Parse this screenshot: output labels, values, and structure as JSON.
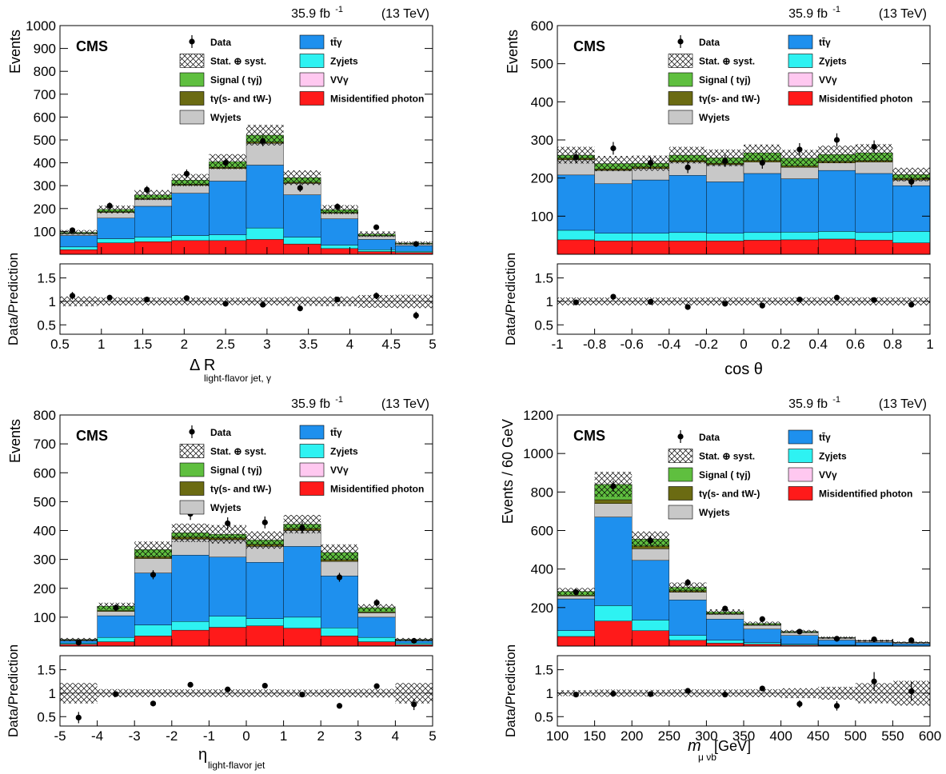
{
  "lumi_label": "35.9 fb",
  "lumi_exp": "-1",
  "energy_label": "(13 TeV)",
  "cms_label": "CMS",
  "ratio_ylabel": "Data/Prediction",
  "ratio_ticks": [
    "0.5",
    "1",
    "1.5"
  ],
  "legend": {
    "data": "Data",
    "unc": "Stat. ⊕ syst.",
    "signal": "Signal ( tγj)",
    "tgamma": "tγ(s- and tW-)",
    "wgamma": "Wγjets",
    "ttgamma": "tt̄γ",
    "zgamma": "Zγjets",
    "vvgamma": "VVγ",
    "misid": "Misidentified photon"
  },
  "colors": {
    "signal": "#5fbf3f",
    "tgamma": "#6b6b12",
    "wgamma": "#c8c8c8",
    "ttgamma": "#1e90ee",
    "zgamma": "#2ef2f2",
    "vvgamma": "#ffc8f0",
    "misid": "#ff1a1a",
    "data": "#000000"
  },
  "chart_data": [
    {
      "type": "bar",
      "stacked": true,
      "ylabel": "Events",
      "xlabel": "Δ R",
      "xlabel_sub": "light-flavor jet, γ",
      "xlim": [
        0.5,
        5
      ],
      "ylim": [
        0,
        1000
      ],
      "xticks": [
        "0.5",
        "1",
        "1.5",
        "2",
        "2.5",
        "3",
        "3.5",
        "4",
        "4.5",
        "5"
      ],
      "yticks": [
        "100",
        "200",
        "300",
        "400",
        "500",
        "600",
        "700",
        "800",
        "900",
        "1000"
      ],
      "bin_edges": [
        0.5,
        0.95,
        1.4,
        1.85,
        2.3,
        2.75,
        3.2,
        3.65,
        4.1,
        4.55,
        5.0
      ],
      "series": [
        {
          "key": "misid",
          "values": [
            20,
            50,
            55,
            60,
            60,
            65,
            45,
            25,
            12,
            8
          ]
        },
        {
          "key": "zgamma",
          "values": [
            12,
            18,
            20,
            22,
            25,
            50,
            30,
            15,
            8,
            5
          ]
        },
        {
          "key": "ttgamma",
          "values": [
            50,
            90,
            135,
            185,
            235,
            275,
            185,
            115,
            45,
            25
          ]
        },
        {
          "key": "wgamma",
          "values": [
            8,
            25,
            30,
            35,
            55,
            95,
            50,
            25,
            15,
            7
          ]
        },
        {
          "key": "tgamma",
          "values": [
            2,
            3,
            4,
            4,
            5,
            6,
            5,
            3,
            2,
            1
          ]
        },
        {
          "key": "signal",
          "values": [
            4,
            10,
            15,
            18,
            25,
            30,
            20,
            12,
            6,
            3
          ]
        }
      ],
      "unc": [
        10,
        17,
        22,
        27,
        33,
        45,
        32,
        20,
        12,
        7
      ],
      "data": [
        {
          "x": 0.65,
          "y": 105
        },
        {
          "x": 1.1,
          "y": 212
        },
        {
          "x": 1.55,
          "y": 282
        },
        {
          "x": 2.03,
          "y": 352
        },
        {
          "x": 2.5,
          "y": 400
        },
        {
          "x": 2.95,
          "y": 495
        },
        {
          "x": 3.4,
          "y": 290
        },
        {
          "x": 3.85,
          "y": 208
        },
        {
          "x": 4.32,
          "y": 118
        },
        {
          "x": 4.8,
          "y": 45
        }
      ],
      "ratio": [
        {
          "x": 0.65,
          "y": 1.12,
          "e": 0.08
        },
        {
          "x": 1.1,
          "y": 1.08,
          "e": 0.05
        },
        {
          "x": 1.55,
          "y": 1.04,
          "e": 0.04
        },
        {
          "x": 2.03,
          "y": 1.07,
          "e": 0.04
        },
        {
          "x": 2.5,
          "y": 0.95,
          "e": 0.03
        },
        {
          "x": 2.95,
          "y": 0.93,
          "e": 0.03
        },
        {
          "x": 3.4,
          "y": 0.85,
          "e": 0.04
        },
        {
          "x": 3.85,
          "y": 1.04,
          "e": 0.05
        },
        {
          "x": 4.32,
          "y": 1.12,
          "e": 0.07
        },
        {
          "x": 4.8,
          "y": 0.7,
          "e": 0.08
        }
      ]
    },
    {
      "type": "bar",
      "stacked": true,
      "ylabel": "Events",
      "xlabel": "cos θ",
      "xlabel_sub": "",
      "xlim": [
        -1,
        1
      ],
      "ylim": [
        0,
        600
      ],
      "xticks": [
        "-1",
        "-0.8",
        "-0.6",
        "-0.4",
        "-0.2",
        "0",
        "0.2",
        "0.4",
        "0.6",
        "0.8",
        "1"
      ],
      "yticks": [
        "100",
        "200",
        "300",
        "400",
        "500",
        "600"
      ],
      "bin_edges": [
        -1,
        -0.8,
        -0.6,
        -0.4,
        -0.2,
        0,
        0.2,
        0.4,
        0.6,
        0.8,
        1
      ],
      "series": [
        {
          "key": "misid",
          "values": [
            38,
            35,
            35,
            35,
            35,
            37,
            38,
            40,
            37,
            30
          ]
        },
        {
          "key": "zgamma",
          "values": [
            25,
            20,
            20,
            22,
            20,
            20,
            20,
            20,
            20,
            30
          ]
        },
        {
          "key": "ttgamma",
          "values": [
            145,
            130,
            140,
            150,
            135,
            155,
            140,
            160,
            155,
            120
          ]
        },
        {
          "key": "wgamma",
          "values": [
            40,
            35,
            30,
            35,
            45,
            30,
            30,
            20,
            30,
            15
          ]
        },
        {
          "key": "tgamma",
          "values": [
            4,
            4,
            4,
            4,
            4,
            4,
            4,
            4,
            4,
            4
          ]
        },
        {
          "key": "signal",
          "values": [
            8,
            14,
            10,
            14,
            14,
            20,
            20,
            18,
            20,
            10
          ]
        }
      ],
      "unc": [
        22,
        20,
        20,
        22,
        22,
        22,
        22,
        23,
        23,
        18
      ],
      "data": [
        {
          "x": -0.9,
          "y": 255
        },
        {
          "x": -0.7,
          "y": 278
        },
        {
          "x": -0.5,
          "y": 240
        },
        {
          "x": -0.3,
          "y": 228
        },
        {
          "x": -0.1,
          "y": 245
        },
        {
          "x": 0.1,
          "y": 240
        },
        {
          "x": 0.3,
          "y": 275
        },
        {
          "x": 0.5,
          "y": 300
        },
        {
          "x": 0.7,
          "y": 282
        },
        {
          "x": 0.9,
          "y": 190
        }
      ],
      "ratio": [
        {
          "x": -0.9,
          "y": 0.98,
          "e": 0.04
        },
        {
          "x": -0.7,
          "y": 1.1,
          "e": 0.04
        },
        {
          "x": -0.5,
          "y": 0.99,
          "e": 0.04
        },
        {
          "x": -0.3,
          "y": 0.88,
          "e": 0.04
        },
        {
          "x": -0.1,
          "y": 0.95,
          "e": 0.04
        },
        {
          "x": 0.1,
          "y": 0.91,
          "e": 0.04
        },
        {
          "x": 0.3,
          "y": 1.04,
          "e": 0.04
        },
        {
          "x": 0.5,
          "y": 1.08,
          "e": 0.04
        },
        {
          "x": 0.7,
          "y": 1.03,
          "e": 0.04
        },
        {
          "x": 0.9,
          "y": 0.93,
          "e": 0.05
        }
      ]
    },
    {
      "type": "bar",
      "stacked": true,
      "ylabel": "Events",
      "xlabel": "η",
      "xlabel_sub": "light-flavor jet",
      "xlim": [
        -5,
        5
      ],
      "ylim": [
        0,
        800
      ],
      "xticks": [
        "-5",
        "-4",
        "-3",
        "-2",
        "-1",
        "0",
        "1",
        "2",
        "3",
        "4",
        "5"
      ],
      "yticks": [
        "100",
        "200",
        "300",
        "400",
        "500",
        "600",
        "700",
        "800"
      ],
      "bin_edges": [
        -5,
        -4,
        -3,
        -2,
        -1,
        0,
        1,
        2,
        3,
        4,
        5
      ],
      "series": [
        {
          "key": "misid",
          "values": [
            6,
            15,
            35,
            55,
            65,
            70,
            62,
            35,
            15,
            5
          ]
        },
        {
          "key": "zgamma",
          "values": [
            4,
            15,
            38,
            30,
            38,
            25,
            38,
            28,
            15,
            5
          ]
        },
        {
          "key": "ttgamma",
          "values": [
            8,
            75,
            180,
            230,
            205,
            195,
            245,
            180,
            70,
            8
          ]
        },
        {
          "key": "wgamma",
          "values": [
            2,
            15,
            50,
            55,
            60,
            55,
            55,
            50,
            15,
            2
          ]
        },
        {
          "key": "tgamma",
          "values": [
            1,
            3,
            6,
            7,
            7,
            7,
            7,
            6,
            3,
            1
          ]
        },
        {
          "key": "signal",
          "values": [
            2,
            15,
            25,
            15,
            12,
            15,
            15,
            25,
            15,
            2
          ]
        }
      ],
      "unc": [
        5,
        12,
        28,
        32,
        32,
        30,
        32,
        28,
        12,
        5
      ],
      "data": [
        {
          "x": -4.5,
          "y": 12
        },
        {
          "x": -3.5,
          "y": 133
        },
        {
          "x": -2.5,
          "y": 247
        },
        {
          "x": -1.5,
          "y": 458
        },
        {
          "x": -0.5,
          "y": 425
        },
        {
          "x": 0.5,
          "y": 428
        },
        {
          "x": 1.5,
          "y": 410
        },
        {
          "x": 2.5,
          "y": 238
        },
        {
          "x": 3.5,
          "y": 150
        },
        {
          "x": 4.5,
          "y": 18
        }
      ],
      "ratio": [
        {
          "x": -4.5,
          "y": 0.48,
          "e": 0.12
        },
        {
          "x": -3.5,
          "y": 0.98,
          "e": 0.05
        },
        {
          "x": -2.5,
          "y": 0.78,
          "e": 0.04
        },
        {
          "x": -1.5,
          "y": 1.18,
          "e": 0.04
        },
        {
          "x": -0.5,
          "y": 1.08,
          "e": 0.04
        },
        {
          "x": 0.5,
          "y": 1.16,
          "e": 0.04
        },
        {
          "x": 1.5,
          "y": 0.97,
          "e": 0.04
        },
        {
          "x": 2.5,
          "y": 0.73,
          "e": 0.04
        },
        {
          "x": 3.5,
          "y": 1.15,
          "e": 0.05
        },
        {
          "x": 4.5,
          "y": 0.76,
          "e": 0.12
        }
      ]
    },
    {
      "type": "bar",
      "stacked": true,
      "ylabel": "Events / 60 GeV",
      "xlabel": "m",
      "xlabel_sub": "μ νb",
      "xlabel_unit": "[GeV]",
      "xlim": [
        100,
        600
      ],
      "ylim": [
        0,
        1200
      ],
      "xticks": [
        "100",
        "150",
        "200",
        "250",
        "300",
        "350",
        "400",
        "450",
        "500",
        "550",
        "600"
      ],
      "yticks": [
        "200",
        "400",
        "600",
        "800",
        "1000",
        "1200"
      ],
      "bin_edges": [
        100,
        150,
        200,
        250,
        300,
        350,
        400,
        450,
        500,
        550,
        600
      ],
      "series": [
        {
          "key": "misid",
          "values": [
            50,
            130,
            80,
            30,
            15,
            10,
            5,
            3,
            2,
            1
          ]
        },
        {
          "key": "zgamma",
          "values": [
            30,
            80,
            55,
            25,
            15,
            8,
            5,
            3,
            2,
            1
          ]
        },
        {
          "key": "ttgamma",
          "values": [
            165,
            460,
            310,
            185,
            110,
            70,
            45,
            25,
            15,
            10
          ]
        },
        {
          "key": "wgamma",
          "values": [
            15,
            70,
            60,
            40,
            25,
            20,
            15,
            10,
            7,
            5
          ]
        },
        {
          "key": "tgamma",
          "values": [
            4,
            20,
            15,
            8,
            4,
            3,
            2,
            1,
            1,
            1
          ]
        },
        {
          "key": "signal",
          "values": [
            20,
            80,
            35,
            17,
            8,
            6,
            4,
            2,
            1,
            1
          ]
        }
      ],
      "unc": [
        18,
        65,
        40,
        25,
        14,
        10,
        8,
        6,
        6,
        5
      ],
      "data": [
        {
          "x": 125,
          "y": 280
        },
        {
          "x": 175,
          "y": 830
        },
        {
          "x": 225,
          "y": 548
        },
        {
          "x": 275,
          "y": 330
        },
        {
          "x": 325,
          "y": 195
        },
        {
          "x": 375,
          "y": 140
        },
        {
          "x": 425,
          "y": 75
        },
        {
          "x": 475,
          "y": 38
        },
        {
          "x": 525,
          "y": 35
        },
        {
          "x": 575,
          "y": 30
        }
      ],
      "ratio": [
        {
          "x": 125,
          "y": 0.97,
          "e": 0.04
        },
        {
          "x": 175,
          "y": 0.99,
          "e": 0.03
        },
        {
          "x": 225,
          "y": 0.98,
          "e": 0.03
        },
        {
          "x": 275,
          "y": 1.05,
          "e": 0.04
        },
        {
          "x": 325,
          "y": 0.97,
          "e": 0.05
        },
        {
          "x": 375,
          "y": 1.1,
          "e": 0.06
        },
        {
          "x": 425,
          "y": 0.77,
          "e": 0.08
        },
        {
          "x": 475,
          "y": 0.73,
          "e": 0.1
        },
        {
          "x": 525,
          "y": 1.25,
          "e": 0.2
        },
        {
          "x": 575,
          "y": 1.04,
          "e": 0.2
        }
      ]
    }
  ]
}
